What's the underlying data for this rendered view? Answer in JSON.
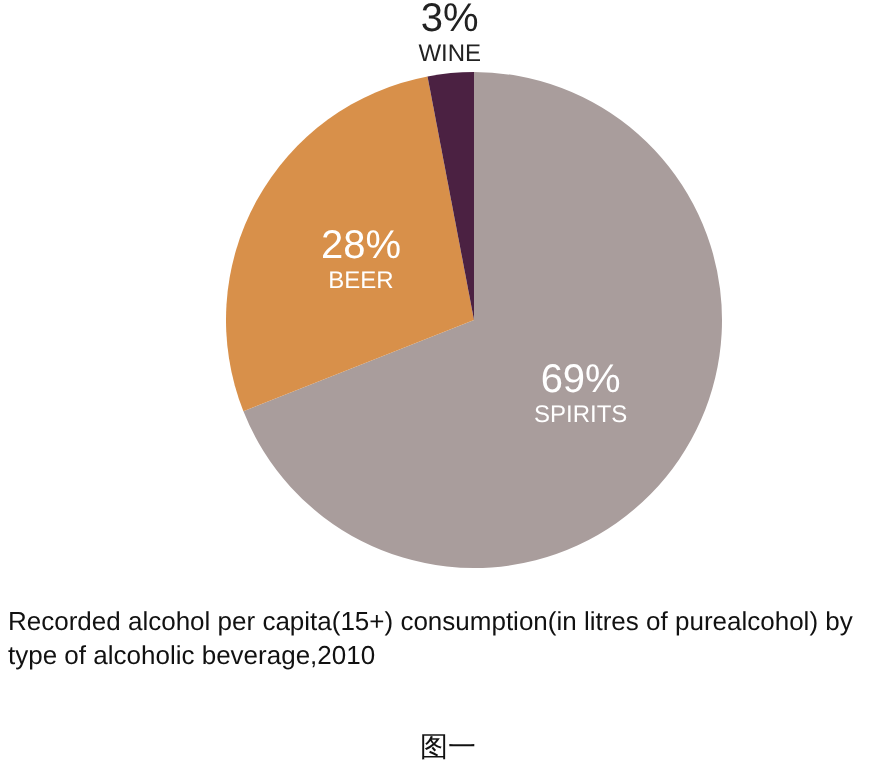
{
  "chart_data": {
    "type": "pie",
    "title": "Recorded alcohol per capita(15+) consumption(in litres of purealcohol) by type of alcoholic beverage,2010",
    "categories": [
      "SPIRITS",
      "BEER",
      "WINE"
    ],
    "values": [
      69,
      28,
      3
    ],
    "value_labels": [
      "69%",
      "28%",
      "3%"
    ],
    "colors": [
      "#a99d9c",
      "#d8904a",
      "#4b2142"
    ],
    "legend": false,
    "annotations": [
      "图一"
    ]
  }
}
